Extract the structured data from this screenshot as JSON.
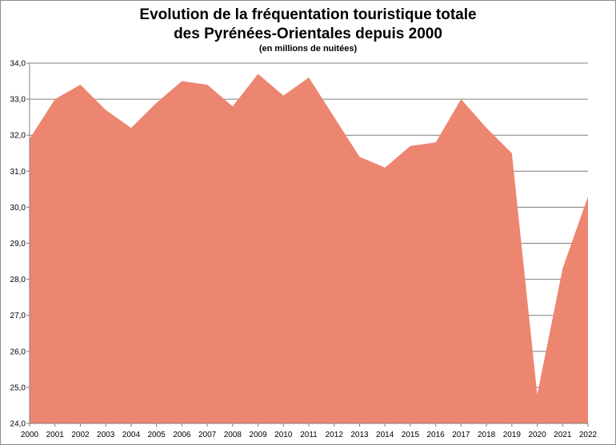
{
  "chart_data": {
    "type": "area",
    "title_line1": "Evolution de la fréquentation touristique totale",
    "title_line2": "des Pyrénées-Orientales depuis 2000",
    "subtitle": "(en millions de nuitées)",
    "xlabel": "",
    "ylabel": "",
    "ylim": [
      24,
      34
    ],
    "yticks": [
      "24,0",
      "25,0",
      "26,0",
      "27,0",
      "28,0",
      "29,0",
      "30,0",
      "31,0",
      "32,0",
      "33,0",
      "34,0"
    ],
    "x": [
      "2000",
      "2001",
      "2002",
      "2003",
      "2004",
      "2005",
      "2006",
      "2007",
      "2008",
      "2009",
      "2010",
      "2011",
      "2012",
      "2013",
      "2014",
      "2015",
      "2016",
      "2017",
      "2018",
      "2019",
      "2020",
      "2021",
      "2022"
    ],
    "values": [
      31.9,
      33.0,
      33.4,
      32.7,
      32.2,
      32.9,
      33.5,
      33.4,
      32.8,
      33.7,
      33.1,
      33.6,
      32.5,
      31.4,
      31.1,
      31.7,
      31.8,
      33.0,
      32.2,
      31.5,
      24.8,
      28.3,
      30.3
    ],
    "grid": true,
    "colors": {
      "area": "#ed8670",
      "grid": "#7f7f7f",
      "axis": "#7f7f7f"
    }
  }
}
